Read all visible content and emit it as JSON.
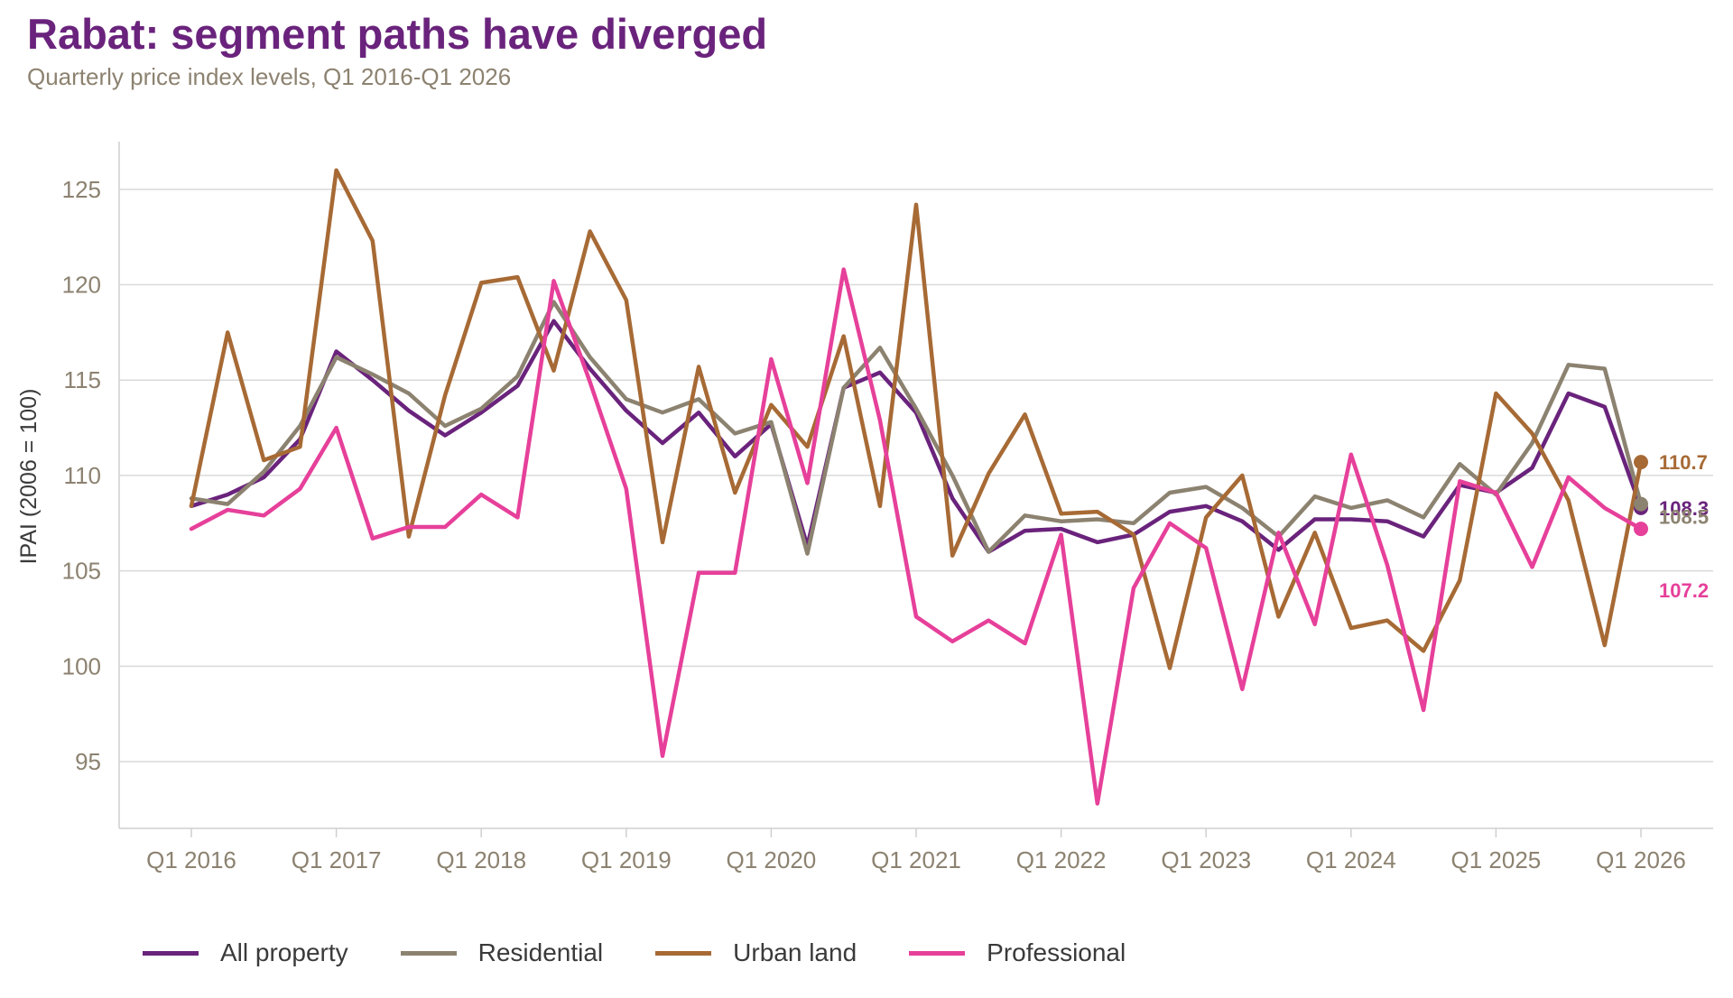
{
  "title": "Rabat: segment paths have diverged",
  "subtitle": "Quarterly price index levels, Q1 2016-Q1 2026",
  "chart_data": {
    "type": "line",
    "title": "Rabat: segment paths have diverged",
    "subtitle": "Quarterly price index levels, Q1 2016-Q1 2026",
    "ylabel": "IPAI (2006 = 100)",
    "xlabel": "",
    "ylim": [
      91.5,
      127.5
    ],
    "yticks": [
      95,
      100,
      105,
      110,
      115,
      120,
      125
    ],
    "x": [
      "Q1 2016",
      "Q2 2016",
      "Q3 2016",
      "Q4 2016",
      "Q1 2017",
      "Q2 2017",
      "Q3 2017",
      "Q4 2017",
      "Q1 2018",
      "Q2 2018",
      "Q3 2018",
      "Q4 2018",
      "Q1 2019",
      "Q2 2019",
      "Q3 2019",
      "Q4 2019",
      "Q1 2020",
      "Q2 2020",
      "Q3 2020",
      "Q4 2020",
      "Q1 2021",
      "Q2 2021",
      "Q3 2021",
      "Q4 2021",
      "Q1 2022",
      "Q2 2022",
      "Q3 2022",
      "Q4 2022",
      "Q1 2023",
      "Q2 2023",
      "Q3 2023",
      "Q4 2023",
      "Q1 2024",
      "Q2 2024",
      "Q3 2024",
      "Q4 2024",
      "Q1 2025",
      "Q2 2025",
      "Q3 2025",
      "Q4 2025",
      "Q1 2026"
    ],
    "xtick_labels": [
      "Q1 2016",
      "Q1 2017",
      "Q1 2018",
      "Q1 2019",
      "Q1 2020",
      "Q1 2021",
      "Q1 2022",
      "Q1 2023",
      "Q1 2024",
      "Q1 2025",
      "Q1 2026"
    ],
    "grid": "horizontal",
    "legend_position": "bottom",
    "series": [
      {
        "name": "All property",
        "color": "#6a237c",
        "end_label": "108.3",
        "values": [
          108.4,
          109.0,
          109.9,
          111.9,
          116.5,
          115.0,
          113.4,
          112.1,
          113.3,
          114.7,
          118.1,
          115.6,
          113.4,
          111.7,
          113.3,
          111.0,
          112.7,
          106.3,
          114.6,
          115.4,
          113.3,
          108.8,
          106.0,
          107.1,
          107.2,
          106.5,
          106.9,
          108.1,
          108.4,
          107.6,
          106.1,
          107.7,
          107.7,
          107.6,
          106.8,
          109.5,
          109.1,
          110.4,
          114.3,
          113.6,
          108.3
        ]
      },
      {
        "name": "Residential",
        "color": "#8c8270",
        "end_label": "108.5",
        "values": [
          108.8,
          108.5,
          110.2,
          112.6,
          116.2,
          115.3,
          114.3,
          112.6,
          113.5,
          115.2,
          119.1,
          116.2,
          114.0,
          113.3,
          114.0,
          112.2,
          112.8,
          105.9,
          114.6,
          116.7,
          113.5,
          110.0,
          106.0,
          107.9,
          107.6,
          107.7,
          107.5,
          109.1,
          109.4,
          108.3,
          106.8,
          108.9,
          108.3,
          108.7,
          107.8,
          110.6,
          109.0,
          111.7,
          115.8,
          115.6,
          108.5
        ]
      },
      {
        "name": "Urban land",
        "color": "#a76a35",
        "end_label": "110.7",
        "values": [
          108.4,
          117.5,
          110.8,
          111.5,
          126.0,
          122.3,
          106.8,
          114.2,
          120.1,
          120.4,
          115.5,
          122.8,
          119.2,
          106.5,
          115.7,
          109.1,
          113.7,
          111.5,
          117.3,
          108.4,
          124.2,
          105.8,
          110.1,
          113.2,
          108.0,
          108.1,
          106.9,
          99.9,
          107.8,
          110.0,
          102.6,
          107.0,
          102.0,
          102.4,
          100.8,
          104.5,
          114.3,
          112.2,
          108.7,
          101.1,
          110.7
        ]
      },
      {
        "name": "Professional",
        "color": "#e6409a",
        "end_label": "107.2",
        "values": [
          107.2,
          108.2,
          107.9,
          109.3,
          112.5,
          106.7,
          107.3,
          107.3,
          109.0,
          107.8,
          120.2,
          114.9,
          109.3,
          95.3,
          104.9,
          104.9,
          116.1,
          109.6,
          120.8,
          112.9,
          102.6,
          101.3,
          102.4,
          101.2,
          106.9,
          92.8,
          104.1,
          107.5,
          106.2,
          98.8,
          107.0,
          102.2,
          111.1,
          105.3,
          97.7,
          109.7,
          109.1,
          105.2,
          109.9,
          108.3,
          107.2
        ]
      }
    ]
  },
  "legend": {
    "items": [
      {
        "label": "All property",
        "color": "#6a237c"
      },
      {
        "label": "Residential",
        "color": "#8c8270"
      },
      {
        "label": "Urban land",
        "color": "#a76a35"
      },
      {
        "label": "Professional",
        "color": "#e6409a"
      }
    ]
  }
}
